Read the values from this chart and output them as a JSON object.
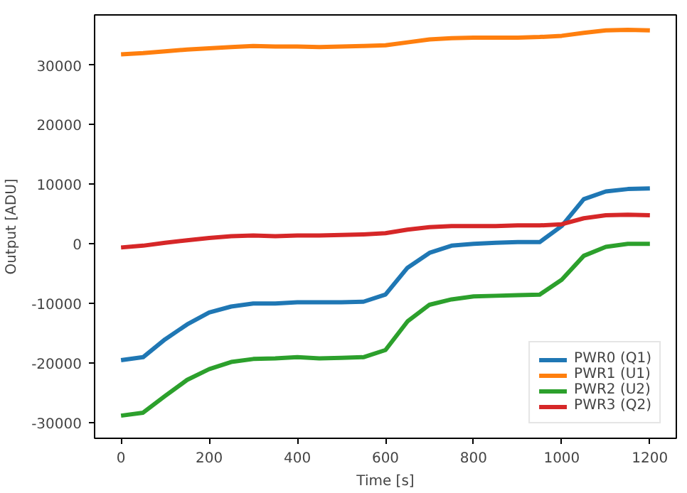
{
  "chart_data": {
    "type": "line",
    "xlabel": "Time [s]",
    "ylabel": "Output [ADU]",
    "x": [
      0,
      50,
      100,
      150,
      200,
      250,
      300,
      350,
      400,
      450,
      500,
      550,
      600,
      650,
      700,
      750,
      800,
      850,
      900,
      950,
      1000,
      1050,
      1100,
      1150,
      1200
    ],
    "series": [
      {
        "name": "PWR0 (Q1)",
        "color": "#1f77b4",
        "values": [
          -19500,
          -19000,
          -16000,
          -13500,
          -11500,
          -10500,
          -10000,
          -10000,
          -9800,
          -9800,
          -9800,
          -9700,
          -8500,
          -4000,
          -1500,
          -300,
          0,
          200,
          300,
          300,
          3000,
          7500,
          8800,
          9200,
          9300
        ]
      },
      {
        "name": "PWR1 (U1)",
        "color": "#ff7f0e",
        "values": [
          31800,
          32000,
          32300,
          32600,
          32800,
          33000,
          33200,
          33100,
          33100,
          33000,
          33100,
          33200,
          33300,
          33800,
          34300,
          34500,
          34600,
          34600,
          34600,
          34700,
          34900,
          35400,
          35800,
          35900,
          35800
        ]
      },
      {
        "name": "PWR2 (U2)",
        "color": "#2ca02c",
        "values": [
          -28800,
          -28300,
          -25500,
          -22800,
          -21000,
          -19800,
          -19300,
          -19200,
          -19000,
          -19200,
          -19100,
          -19000,
          -17800,
          -13000,
          -10200,
          -9300,
          -8800,
          -8700,
          -8600,
          -8500,
          -6000,
          -2000,
          -500,
          0,
          0
        ]
      },
      {
        "name": "PWR3 (Q2)",
        "color": "#d62728",
        "values": [
          -600,
          -300,
          200,
          600,
          1000,
          1300,
          1400,
          1300,
          1400,
          1400,
          1500,
          1600,
          1800,
          2400,
          2800,
          3000,
          3000,
          3000,
          3100,
          3100,
          3300,
          4300,
          4800,
          4900,
          4800
        ]
      }
    ],
    "xlim": [
      -60,
      1260
    ],
    "ylim": [
      -32600,
      38400
    ],
    "xticks": [
      0,
      200,
      400,
      600,
      800,
      1000,
      1200
    ],
    "yticks": [
      -30000,
      -20000,
      -10000,
      0,
      10000,
      20000,
      30000
    ],
    "legend": "bottom right",
    "grid": false,
    "marker": "none",
    "line_style": "solid"
  }
}
